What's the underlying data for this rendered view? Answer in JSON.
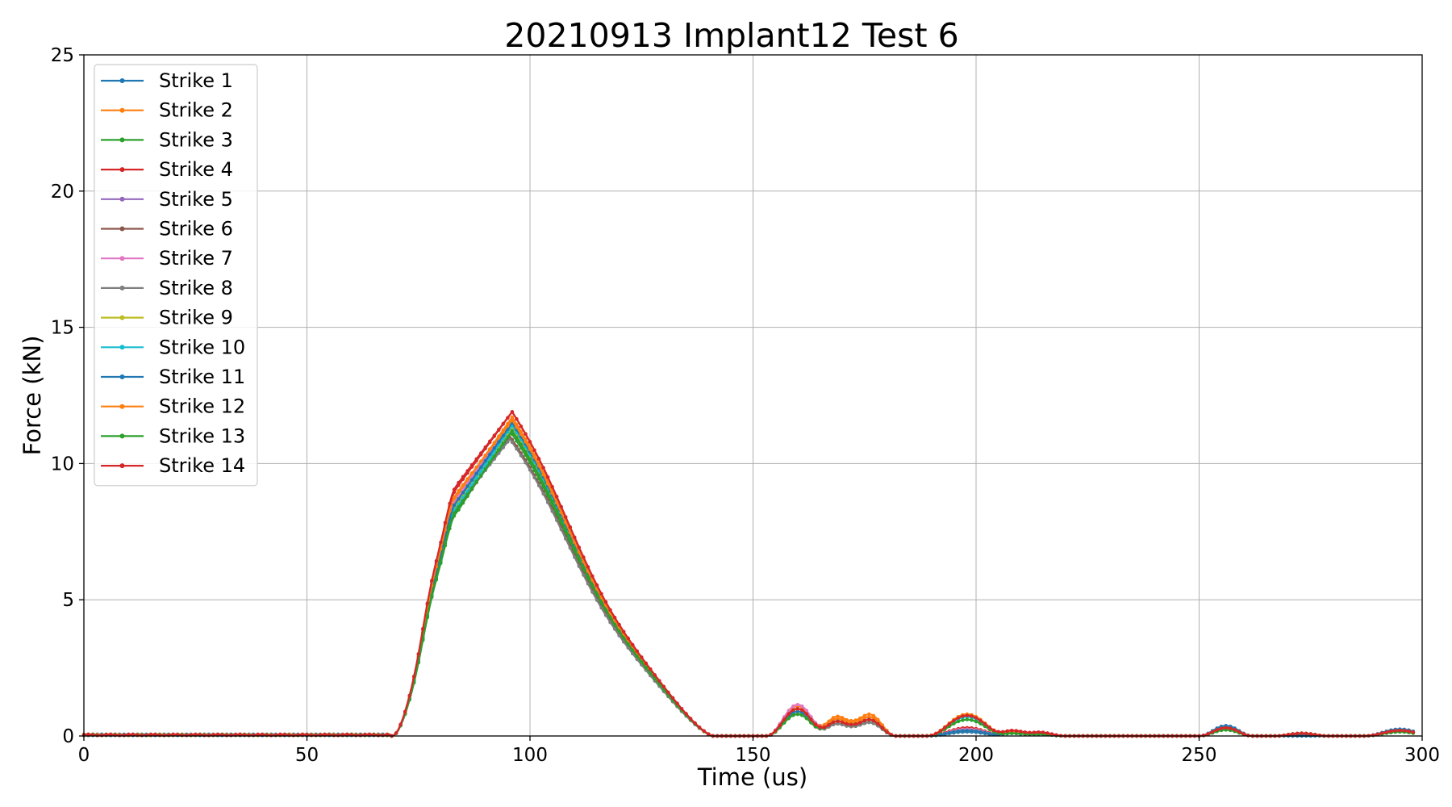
{
  "chart_data": {
    "type": "line",
    "title": "20210913 Implant12 Test 6",
    "xlabel": "Time (us)",
    "ylabel": "Force (kN)",
    "xlim": [
      0,
      300
    ],
    "ylim": [
      0,
      25
    ],
    "xticks": [
      0,
      50,
      100,
      150,
      200,
      250,
      300
    ],
    "yticks": [
      0,
      5,
      10,
      15,
      20,
      25
    ],
    "grid": true,
    "legend_position": "top-left",
    "marker": "dot",
    "series": [
      {
        "name": "Strike 1",
        "color": "#1f77b4",
        "peak": 11.5,
        "peak_t": 96.0,
        "shoulder": 8.6,
        "tail": 0.0,
        "b1": 0.9,
        "b2": 0.6,
        "b3": 0.1,
        "b4": 0.15,
        "b5": 0.0,
        "b6": 0.2
      },
      {
        "name": "Strike 2",
        "color": "#ff7f0e",
        "peak": 11.7,
        "peak_t": 96.0,
        "shoulder": 8.9,
        "tail": 0.0,
        "b1": 1.1,
        "b2": 0.8,
        "b3": 0.15,
        "b4": 0.3,
        "b5": 0.05,
        "b6": 0.2
      },
      {
        "name": "Strike 3",
        "color": "#2ca02c",
        "peak": 11.2,
        "peak_t": 95.5,
        "shoulder": 8.3,
        "tail": 0.0,
        "b1": 0.8,
        "b2": 0.5,
        "b3": 0.1,
        "b4": 0.2,
        "b5": 0.1,
        "b6": 0.15
      },
      {
        "name": "Strike 4",
        "color": "#d62728",
        "peak": 11.9,
        "peak_t": 96.0,
        "shoulder": 9.2,
        "tail": 0.0,
        "b1": 1.0,
        "b2": 0.7,
        "b3": 0.2,
        "b4": 0.3,
        "b5": 0.1,
        "b6": 0.2
      },
      {
        "name": "Strike 5",
        "color": "#9467bd",
        "peak": 11.4,
        "peak_t": 96.0,
        "shoulder": 8.7,
        "tail": 0.0,
        "b1": 0.9,
        "b2": 0.6,
        "b3": 0.1,
        "b4": 0.2,
        "b5": 0.05,
        "b6": 0.25
      },
      {
        "name": "Strike 6",
        "color": "#8c564b",
        "peak": 11.0,
        "peak_t": 95.5,
        "shoulder": 8.4,
        "tail": 0.0,
        "b1": 0.8,
        "b2": 0.5,
        "b3": 0.1,
        "b4": 0.2,
        "b5": 0.05,
        "b6": 0.2
      },
      {
        "name": "Strike 7",
        "color": "#e377c2",
        "peak": 11.6,
        "peak_t": 96.0,
        "shoulder": 8.8,
        "tail": 0.0,
        "b1": 1.15,
        "b2": 0.7,
        "b3": 0.15,
        "b4": 0.25,
        "b5": 0.05,
        "b6": 0.2
      },
      {
        "name": "Strike 8",
        "color": "#7f7f7f",
        "peak": 10.9,
        "peak_t": 95.5,
        "shoulder": 8.5,
        "tail": 0.0,
        "b1": 0.8,
        "b2": 0.5,
        "b3": 0.1,
        "b4": 0.2,
        "b5": 0.05,
        "b6": 0.2
      },
      {
        "name": "Strike 9",
        "color": "#bcbd22",
        "peak": 11.3,
        "peak_t": 96.0,
        "shoulder": 8.6,
        "tail": 0.0,
        "b1": 0.9,
        "b2": 0.6,
        "b3": 0.1,
        "b4": 0.2,
        "b5": 0.05,
        "b6": 0.2
      },
      {
        "name": "Strike 10",
        "color": "#17becf",
        "peak": 11.4,
        "peak_t": 96.0,
        "shoulder": 8.5,
        "tail": 0.0,
        "b1": 1.0,
        "b2": 0.6,
        "b3": 0.1,
        "b4": 0.7,
        "b5": 0.05,
        "b6": 0.2
      },
      {
        "name": "Strike 11",
        "color": "#1f77b4",
        "peak": 11.5,
        "peak_t": 96.0,
        "shoulder": 8.7,
        "tail": 0.0,
        "b1": 0.9,
        "b2": 0.6,
        "b3": 0.1,
        "b4": 0.2,
        "b5": 0.05,
        "b6": 0.25
      },
      {
        "name": "Strike 12",
        "color": "#ff7f0e",
        "peak": 11.6,
        "peak_t": 96.0,
        "shoulder": 9.0,
        "tail": 0.0,
        "b1": 1.0,
        "b2": 0.7,
        "b3": 0.15,
        "b4": 0.8,
        "b5": 0.1,
        "b6": 0.2
      },
      {
        "name": "Strike 13",
        "color": "#2ca02c",
        "peak": 11.2,
        "peak_t": 96.0,
        "shoulder": 8.4,
        "tail": 0.0,
        "b1": 0.8,
        "b2": 0.6,
        "b3": 0.1,
        "b4": 0.6,
        "b5": 0.1,
        "b6": 0.15
      },
      {
        "name": "Strike 14",
        "color": "#d62728",
        "peak": 11.9,
        "peak_t": 96.0,
        "shoulder": 9.3,
        "tail": 0.0,
        "b1": 1.0,
        "b2": 0.6,
        "b3": 0.2,
        "b4": 0.75,
        "b5": 0.1,
        "b6": 0.2
      }
    ]
  }
}
